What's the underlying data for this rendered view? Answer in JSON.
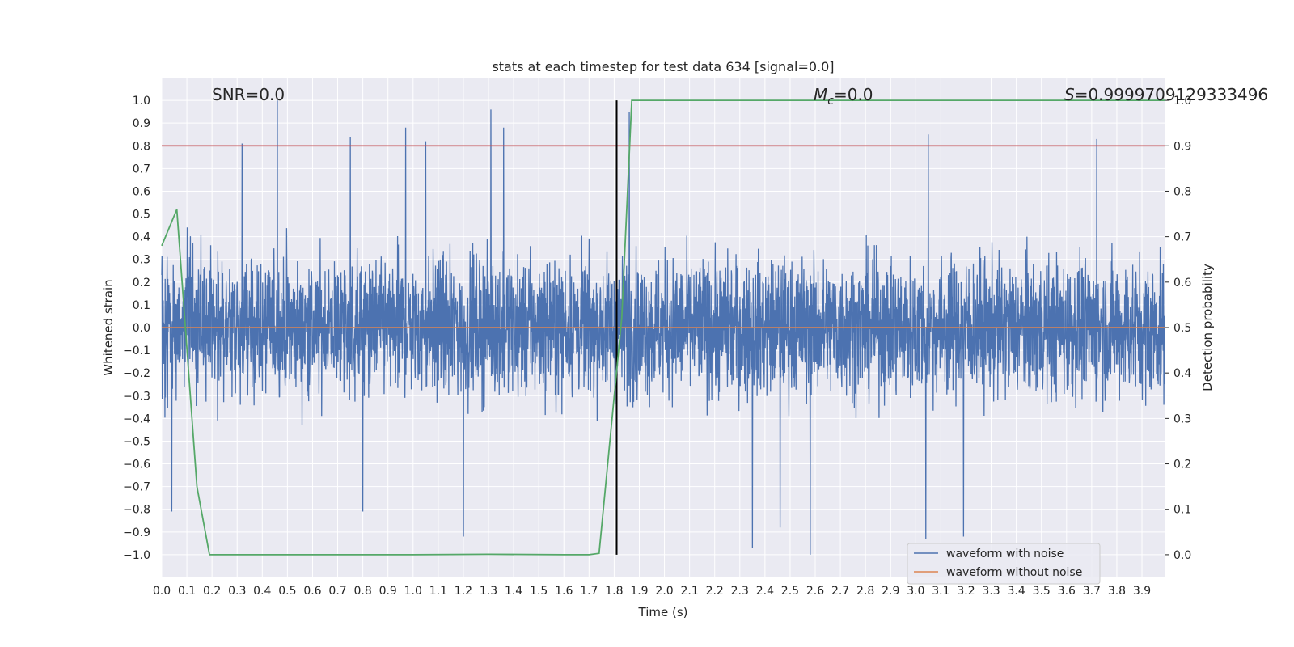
{
  "chart_data": {
    "type": "line",
    "title": "stats at each timestep for test data 634 [signal=0.0]",
    "xlabel": "Time (s)",
    "ylabel": "Whitened strain",
    "ylabel_right": "Detection probability",
    "xlim": [
      0.0,
      3.99
    ],
    "ylim": [
      -1.1,
      1.1
    ],
    "ylim_right": [
      -0.05,
      1.05
    ],
    "x_ticks": [
      "0.0",
      "0.1",
      "0.2",
      "0.3",
      "0.4",
      "0.5",
      "0.6",
      "0.7",
      "0.8",
      "0.9",
      "1.0",
      "1.1",
      "1.2",
      "1.3",
      "1.4",
      "1.5",
      "1.6",
      "1.7",
      "1.8",
      "1.9",
      "2.0",
      "2.1",
      "2.2",
      "2.3",
      "2.4",
      "2.5",
      "2.6",
      "2.7",
      "2.8",
      "2.9",
      "3.0",
      "3.1",
      "3.2",
      "3.3",
      "3.4",
      "3.5",
      "3.6",
      "3.7",
      "3.8",
      "3.9"
    ],
    "y_ticks": [
      "1.0",
      "0.9",
      "0.8",
      "0.7",
      "0.6",
      "0.5",
      "0.4",
      "0.3",
      "0.2",
      "0.1",
      "0.0",
      "−0.1",
      "−0.2",
      "−0.3",
      "−0.4",
      "−0.5",
      "−0.6",
      "−0.7",
      "−0.8",
      "−0.9",
      "−1.0"
    ],
    "y_right_ticks": [
      "1.0",
      "0.9",
      "0.8",
      "0.7",
      "0.6",
      "0.5",
      "0.4",
      "0.3",
      "0.2",
      "0.1",
      "0.0"
    ],
    "annotations": {
      "snr": "SNR=0.0",
      "mc_symbol": "M",
      "mc_sub": "c",
      "mc_value": "=0.0",
      "s_symbol": "S",
      "s_value": "=0.9999709129333496"
    },
    "threshold_line": {
      "y": 0.8,
      "color": "#c44e52"
    },
    "vertical_marker": {
      "x": 1.81,
      "y_range": [
        -1.0,
        1.0
      ],
      "color": "#000000"
    },
    "legend": {
      "position": "lower-right",
      "entries": [
        {
          "label": "waveform with noise",
          "color": "#4c72b0"
        },
        {
          "label": "waveform without noise",
          "color": "#dd8452"
        }
      ]
    },
    "series": [
      {
        "name": "waveform with noise",
        "color": "#4c72b0",
        "samples": 4096,
        "amplitude_envelope": [
          -1.0,
          1.0
        ],
        "peaks": [
          {
            "x": 0.46,
            "y": 1.0
          },
          {
            "x": 1.31,
            "y": 0.96
          },
          {
            "x": 1.86,
            "y": 0.95
          },
          {
            "x": 0.97,
            "y": 0.88
          },
          {
            "x": 1.36,
            "y": 0.88
          },
          {
            "x": 0.75,
            "y": 0.84
          },
          {
            "x": 3.05,
            "y": 0.85
          },
          {
            "x": 3.72,
            "y": 0.83
          },
          {
            "x": 0.32,
            "y": 0.81
          },
          {
            "x": 1.05,
            "y": 0.82
          },
          {
            "x": 2.58,
            "y": -1.0
          },
          {
            "x": 2.35,
            "y": -0.97
          },
          {
            "x": 1.2,
            "y": -0.92
          },
          {
            "x": 3.04,
            "y": -0.93
          },
          {
            "x": 3.19,
            "y": -0.92
          },
          {
            "x": 2.46,
            "y": -0.88
          },
          {
            "x": 0.8,
            "y": -0.81
          },
          {
            "x": 0.04,
            "y": -0.81
          }
        ]
      },
      {
        "name": "waveform without noise",
        "color": "#dd8452",
        "x": [
          0.0,
          3.99
        ],
        "y": [
          0.0,
          0.0
        ]
      },
      {
        "name": "detection probability",
        "color": "#55a868",
        "axis": "right",
        "x": [
          0.0,
          0.06,
          0.14,
          0.19,
          0.25,
          1.0,
          1.3,
          1.6,
          1.7,
          1.74,
          1.83,
          1.87,
          3.99
        ],
        "y": [
          0.68,
          0.76,
          0.15,
          0.0,
          0.0,
          0.0,
          0.001,
          0.0,
          0.0,
          0.003,
          0.52,
          1.0,
          1.0
        ]
      }
    ]
  }
}
